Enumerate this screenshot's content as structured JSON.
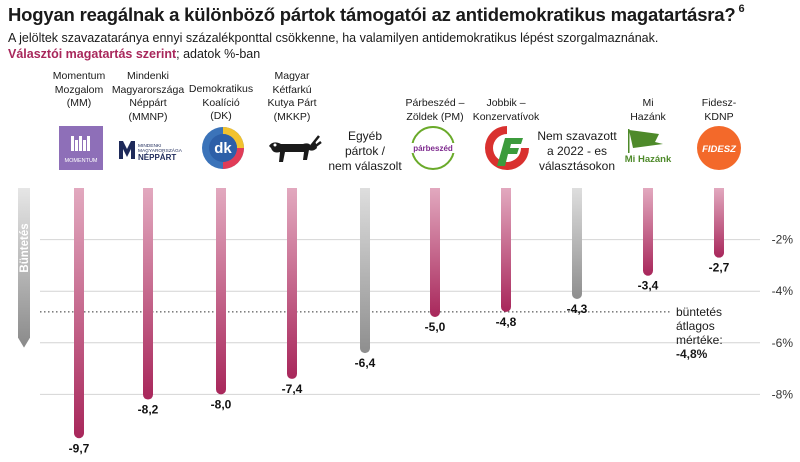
{
  "title": "Hogyan reagálnak a különböző pártok támogatói az antidemokratikus magatartásra?",
  "title_note": "6",
  "subtitle": "A jelöltek szavazataránya ennyi százalékponttal csökkenne, ha valamilyen antidemokratikus lépést szorgalmaznának.",
  "subtitle2_accent": "Választói magatartás szerint",
  "subtitle2_rest": "; adatok %-ban",
  "avg_note": {
    "text": "büntetés\nátlagos\nmértéke:",
    "value": "-4,8%"
  },
  "logos": {
    "momentum": "MOMENTUM",
    "mmnp_small": "MINDENKI\nMAGYARORSZÁGA",
    "mmnp_big": "NÉPPÁRT",
    "dk": "dk",
    "pm": "párbeszéd",
    "mihazank": "Mi Hazánk",
    "fidesz": "FIDESZ"
  },
  "chart_data": {
    "type": "bar",
    "categories": [
      "Momentum\nMozgalom\n(MM)",
      "Mindenki\nMagyarországa\nNéppárt\n(MMNP)",
      "Demokratikus\nKoalíció\n(DK)",
      "Magyar\nKétfarkú\nKutya Párt\n(MKKP)",
      "Egyéb\npártok /\nnem válaszolt",
      "Párbeszéd –\nZöldek (PM)",
      "Jobbik –\nKonzervatívok",
      "Nem szavazott\na 2022 - es\nválasztásokon",
      "Mi\nHazánk",
      "Fidesz-\nKDNP"
    ],
    "values": [
      -9.7,
      -8.2,
      -8.0,
      -7.4,
      -6.4,
      -5.0,
      -4.8,
      -4.3,
      -3.4,
      -2.7
    ],
    "value_labels": [
      "-9,7",
      "-8,2",
      "-8,0",
      "-7,4",
      "-6,4",
      "-5,0",
      "-4,8",
      "-4,3",
      "-3,4",
      "-2,7"
    ],
    "gray": [
      false,
      false,
      false,
      false,
      true,
      false,
      false,
      true,
      false,
      false
    ],
    "yticks": [
      -2,
      -4,
      -6,
      -8
    ],
    "ytick_labels": [
      "-2%",
      "-4%",
      "-6%",
      "-8%"
    ],
    "average": -4.8,
    "axis_label": "Büntetés",
    "colors": {
      "party_top": "#e2a9bf",
      "party_bottom": "#a8275b",
      "gray_top": "#dedede",
      "gray_bottom": "#8e8e8e",
      "accent": "#a8275b"
    }
  }
}
